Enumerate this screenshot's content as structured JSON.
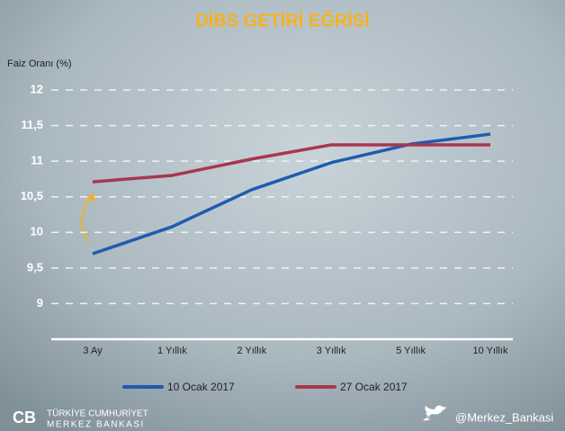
{
  "chart_data": {
    "type": "line",
    "title": "DİBS GETİRİ EĞRİSİ",
    "y_label": "Faiz Oranı (%)",
    "categories": [
      "3 Ay",
      "1 Yıllık",
      "2 Yıllık",
      "3 Yıllık",
      "5 Yıllık",
      "10 Yıllık"
    ],
    "series": [
      {
        "name": "10 Ocak 2017",
        "color": "#1f5bb0",
        "values": [
          9.7,
          10.08,
          10.6,
          10.98,
          11.24,
          11.38
        ]
      },
      {
        "name": "27 Ocak 2017",
        "color": "#a8374f",
        "values": [
          10.71,
          10.8,
          11.03,
          11.23,
          11.23,
          11.23
        ]
      }
    ],
    "ylim": [
      8.5,
      12
    ],
    "yticks": [
      9,
      {
        "value": 9.5,
        "label": "9,5"
      },
      10,
      {
        "value": 10.5,
        "label": "10,5"
      },
      11,
      {
        "value": 11.5,
        "label": "11,5"
      },
      12
    ],
    "grid": true
  },
  "footer": {
    "org_line1": "TÜRKİYE CUMHURİYET",
    "org_line2": "MERKEZ BANKASI",
    "twitter": "@Merkez_Bankasi"
  }
}
